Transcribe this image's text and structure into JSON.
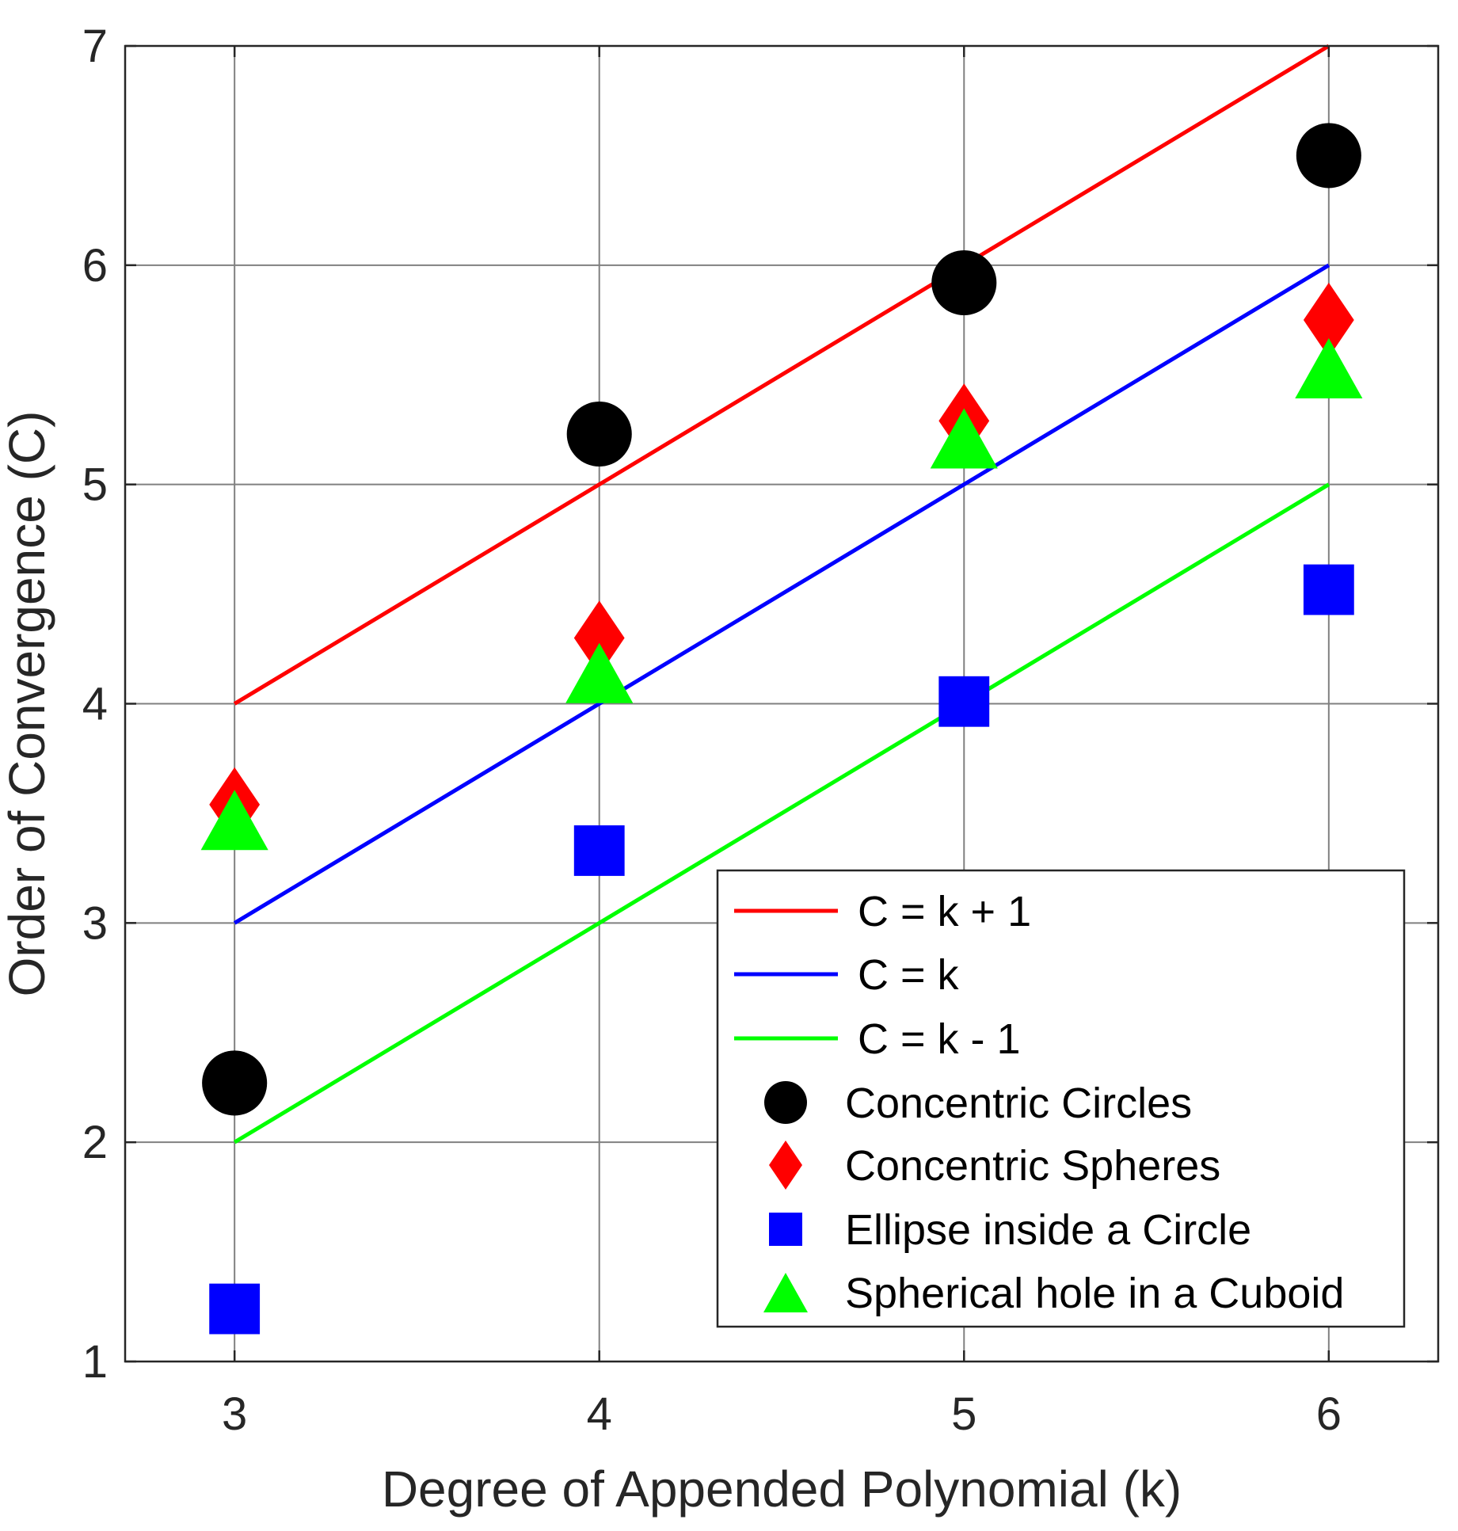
{
  "chart_data": {
    "type": "line",
    "xlabel": "Degree of Appended Polynomial (k)",
    "ylabel": "Order of Convergence (C)",
    "xlim": [
      2.7,
      6.3
    ],
    "ylim": [
      1,
      7
    ],
    "x_ticks": [
      "3",
      "4",
      "5",
      "6"
    ],
    "y_ticks": [
      "1",
      "2",
      "3",
      "4",
      "5",
      "6",
      "7"
    ],
    "grid": true,
    "legend_position": "bottom-right",
    "x": [
      3,
      4,
      5,
      6
    ],
    "series": [
      {
        "name": "C = k + 1",
        "kind": "line",
        "color": "#ff0000",
        "values": [
          4,
          5,
          6,
          7
        ]
      },
      {
        "name": "C = k",
        "kind": "line",
        "color": "#0000ff",
        "values": [
          3,
          4,
          5,
          6
        ]
      },
      {
        "name": "C = k - 1",
        "kind": "line",
        "color": "#00ff00",
        "values": [
          2,
          3,
          4,
          5
        ]
      },
      {
        "name": "Concentric Circles",
        "kind": "marker",
        "marker": "circle",
        "color": "#000000",
        "values": [
          2.27,
          5.23,
          5.92,
          6.5
        ]
      },
      {
        "name": "Concentric Spheres",
        "kind": "marker",
        "marker": "diamond",
        "color": "#ff0000",
        "values": [
          3.54,
          4.3,
          5.29,
          5.75
        ]
      },
      {
        "name": "Ellipse inside a Circle",
        "kind": "marker",
        "marker": "square",
        "color": "#0000ff",
        "values": [
          1.24,
          3.33,
          4.01,
          4.52
        ]
      },
      {
        "name": "Spherical hole in a Cuboid",
        "kind": "marker",
        "marker": "triangle",
        "color": "#00ff00",
        "values": [
          3.47,
          4.14,
          5.21,
          5.53
        ]
      }
    ]
  }
}
